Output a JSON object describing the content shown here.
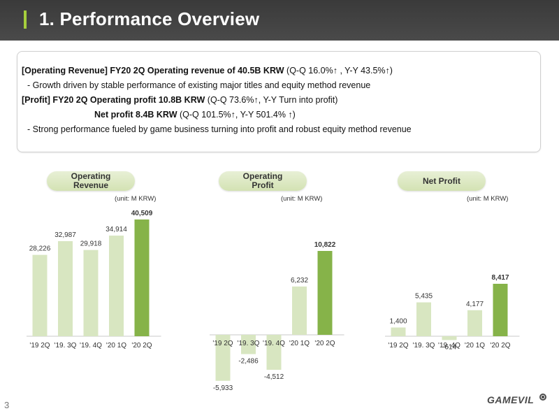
{
  "header": {
    "title": "1. Performance Overview"
  },
  "summary": {
    "line1_bold": "[Operating Revenue]  FY20 2Q Operating revenue of 40.5B KRW",
    "line1_rest": " (Q-Q 16.0%↑ , Y-Y 43.5%↑)",
    "line2": "- Growth driven by stable performance of existing major titles and equity method revenue",
    "line3_bold": "[Profit] FY20 2Q Operating profit 10.8B KRW",
    "line3_rest": " (Q-Q 73.6%↑, Y-Y Turn into profit)",
    "line4_bold": "Net profit 8.4B KRW",
    "line4_rest": " (Q-Q 101.5%↑, Y-Y 501.4% ↑)",
    "line5": "- Strong performance fueled by game business turning into profit and robust equity method revenue"
  },
  "colors": {
    "bar_light": "#d8e6c1",
    "bar_highlight": "#86b349",
    "header_bg": "#444444",
    "accent": "#a6cf3c"
  },
  "footer": {
    "page_number": "3",
    "logo": "GAMEVIL"
  },
  "chart_data": [
    {
      "type": "bar",
      "title": "Operating Revenue",
      "unit": "(unit: M KRW)",
      "categories": [
        "'19 2Q",
        "'19. 3Q",
        "'19. 4Q",
        "'20 1Q",
        "'20 2Q"
      ],
      "values": [
        28226,
        32987,
        29918,
        34914,
        40509
      ],
      "labels": [
        "28,226",
        "32,987",
        "29,918",
        "34,914",
        "40,509"
      ],
      "highlight_index": 4
    },
    {
      "type": "bar",
      "title": "Operating Profit",
      "unit": "(unit: M KRW)",
      "categories": [
        "'19 2Q",
        "'19. 3Q",
        "'19. 4Q",
        "'20 1Q",
        "'20 2Q"
      ],
      "values": [
        -5933,
        -2486,
        -4512,
        6232,
        10822
      ],
      "labels": [
        "-5,933",
        "-2,486",
        "-4,512",
        "6,232",
        "10,822"
      ],
      "highlight_index": 4
    },
    {
      "type": "bar",
      "title": "Net Profit",
      "unit": "(unit: M KRW)",
      "categories": [
        "'19 2Q",
        "'19. 3Q",
        "'19. 4Q",
        "'20 1Q",
        "'20 2Q"
      ],
      "values": [
        1400,
        5435,
        -614,
        4177,
        8417
      ],
      "labels": [
        "1,400",
        "5,435",
        "-614",
        "4,177",
        "8,417"
      ],
      "highlight_index": 4
    }
  ]
}
